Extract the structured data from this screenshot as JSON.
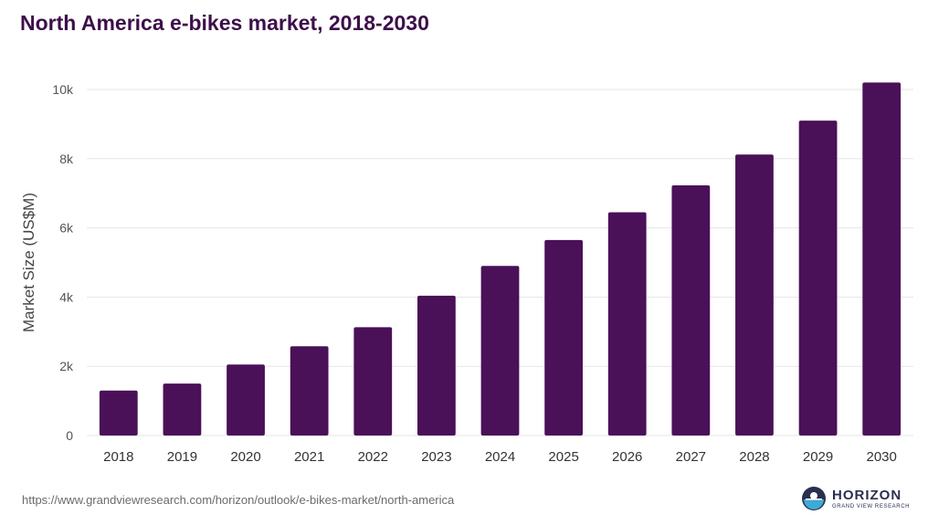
{
  "title": "North America e-bikes market, 2018-2030",
  "source": "https://www.grandviewresearch.com/horizon/outlook/e-bikes-market/north-america",
  "logo": {
    "name": "HORIZON",
    "tagline": "GRAND VIEW RESEARCH",
    "icon": "horizon-logo-icon"
  },
  "colors": {
    "bar": "#4a1058",
    "title": "#3d0f4a",
    "grid": "#e6e6e6"
  },
  "chart_data": {
    "type": "bar",
    "title": "North America e-bikes market, 2018-2030",
    "xlabel": "",
    "ylabel": "Market Size (US$M)",
    "categories": [
      "2018",
      "2019",
      "2020",
      "2021",
      "2022",
      "2023",
      "2024",
      "2025",
      "2026",
      "2027",
      "2028",
      "2029",
      "2030"
    ],
    "values": [
      1300,
      1500,
      2050,
      2580,
      3130,
      4040,
      4900,
      5650,
      6450,
      7230,
      8120,
      9100,
      10200
    ],
    "ylim": [
      0,
      10000
    ],
    "yticks": [
      0,
      2000,
      4000,
      6000,
      8000,
      10000
    ],
    "ytick_labels": [
      "0",
      "2k",
      "4k",
      "6k",
      "8k",
      "10k"
    ],
    "grid": true,
    "legend": "none"
  }
}
